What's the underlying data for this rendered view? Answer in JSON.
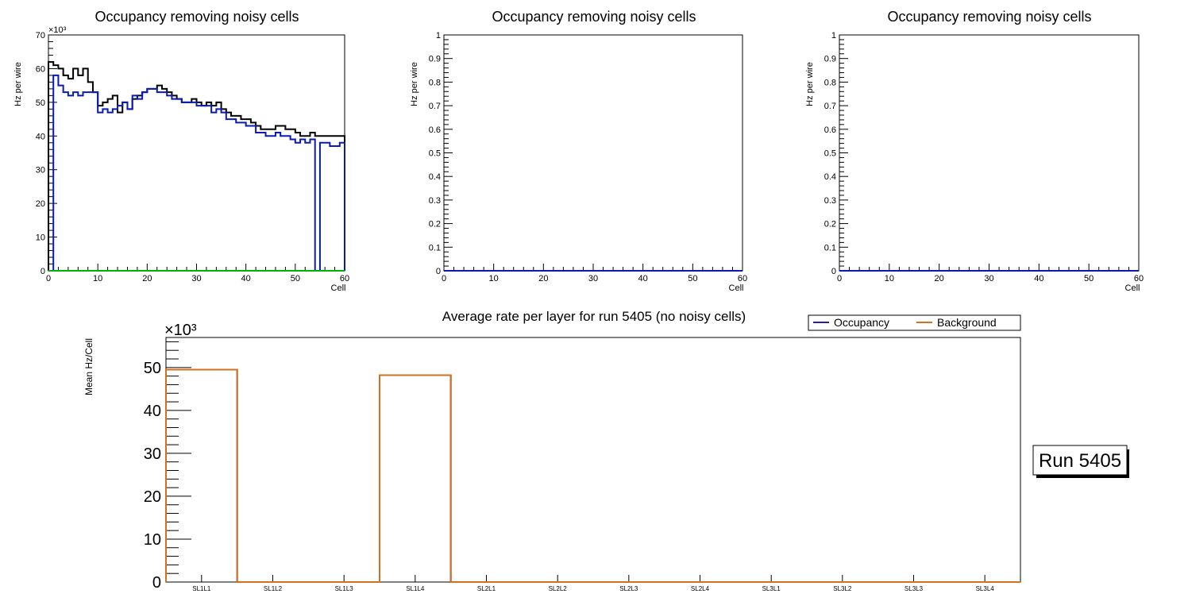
{
  "chart_data": [
    {
      "type": "line",
      "title": "Occupancy removing noisy cells",
      "xlabel": "Cell",
      "ylabel": "Hz per wire",
      "xlim": [
        0,
        60
      ],
      "ylim": [
        0,
        70
      ],
      "y_exponent": "×10³",
      "x_ticks": [
        0,
        10,
        20,
        30,
        40,
        50,
        60
      ],
      "y_ticks": [
        0,
        10,
        20,
        30,
        40,
        50,
        60,
        70
      ],
      "grid": false,
      "series": [
        {
          "name": "black",
          "color": "#000000",
          "values": [
            62,
            61,
            60,
            58,
            57,
            60,
            58,
            60,
            56,
            53,
            49,
            50,
            51,
            52,
            47,
            50,
            48,
            51,
            52,
            53,
            54,
            54,
            55,
            54,
            53,
            52,
            51,
            50,
            50,
            51,
            50,
            49,
            50,
            49,
            50,
            48,
            47,
            46,
            46,
            45,
            45,
            44,
            43,
            42,
            42,
            42,
            43,
            43,
            42,
            42,
            41,
            40,
            40,
            41,
            40,
            40,
            40,
            40,
            40,
            40
          ]
        },
        {
          "name": "blue",
          "color": "#0a1bb4",
          "values": [
            0,
            58,
            55,
            53,
            52,
            53,
            52,
            53,
            53,
            53,
            47,
            48,
            47,
            48,
            49,
            50,
            48,
            52,
            51,
            53,
            54,
            54,
            53,
            53,
            52,
            51,
            51,
            50,
            50,
            50,
            49,
            49,
            49,
            47,
            48,
            47,
            45,
            45,
            44,
            44,
            43,
            43,
            41,
            41,
            40,
            40,
            41,
            40,
            40,
            39,
            38,
            39,
            38,
            39,
            0,
            38,
            38,
            37,
            37,
            38
          ]
        },
        {
          "name": "green",
          "color": "#00b400",
          "values": [
            0,
            0,
            0,
            0,
            0,
            0,
            0,
            0,
            0,
            0,
            0,
            0,
            0,
            0,
            0,
            0,
            0,
            0,
            0,
            0,
            0,
            0,
            0,
            0,
            0,
            0,
            0,
            0,
            0,
            0,
            0,
            0,
            0,
            0,
            0,
            0,
            0,
            0,
            0,
            0,
            0,
            0,
            0,
            0,
            0,
            0,
            0,
            0,
            0,
            0,
            0,
            0,
            0,
            0,
            0,
            0,
            0,
            0,
            0,
            0
          ]
        }
      ]
    },
    {
      "type": "line",
      "title": "Occupancy removing noisy cells",
      "xlabel": "Cell",
      "ylabel": "Hz per wire",
      "xlim": [
        0,
        60
      ],
      "ylim": [
        0,
        1
      ],
      "x_ticks": [
        0,
        10,
        20,
        30,
        40,
        50,
        60
      ],
      "y_ticks": [
        0,
        0.1,
        0.2,
        0.3,
        0.4,
        0.5,
        0.6,
        0.7,
        0.8,
        0.9,
        1
      ],
      "series": [
        {
          "name": "blue",
          "color": "#0a1bb4",
          "values": [
            0,
            0
          ]
        }
      ]
    },
    {
      "type": "line",
      "title": "Occupancy removing noisy cells",
      "xlabel": "Cell",
      "ylabel": "Hz per wire",
      "xlim": [
        0,
        60
      ],
      "ylim": [
        0,
        1
      ],
      "x_ticks": [
        0,
        10,
        20,
        30,
        40,
        50,
        60
      ],
      "y_ticks": [
        0,
        0.1,
        0.2,
        0.3,
        0.4,
        0.5,
        0.6,
        0.7,
        0.8,
        0.9,
        1
      ],
      "series": [
        {
          "name": "blue",
          "color": "#0a1bb4",
          "values": [
            0,
            0
          ]
        }
      ]
    },
    {
      "type": "bar",
      "title": "Average rate per layer for run 5405 (no noisy cells)",
      "xlabel": "",
      "ylabel": "Mean Hz/Cell",
      "y_exponent": "×10³",
      "ylim": [
        0,
        57
      ],
      "y_ticks": [
        0,
        10,
        20,
        30,
        40,
        50
      ],
      "categories": [
        "SL1L1",
        "SL1L2",
        "SL1L3",
        "SL1L4",
        "SL2L1",
        "SL2L2",
        "SL2L3",
        "SL2L4",
        "SL3L1",
        "SL3L2",
        "SL3L3",
        "SL3L4"
      ],
      "series": [
        {
          "name": "Occupancy",
          "color": "#2a1fa0",
          "values": [
            49.5,
            0,
            0,
            48.2,
            0,
            0,
            0,
            0,
            0,
            0,
            0,
            0
          ]
        },
        {
          "name": "Background",
          "color": "#d2721e",
          "values": [
            49.5,
            0,
            0,
            48.2,
            0,
            0,
            0,
            0,
            0,
            0,
            0,
            0
          ]
        }
      ],
      "legend": {
        "placement": "top-right",
        "entries": [
          "Occupancy",
          "Background"
        ]
      },
      "annotation": "Run 5405"
    }
  ]
}
